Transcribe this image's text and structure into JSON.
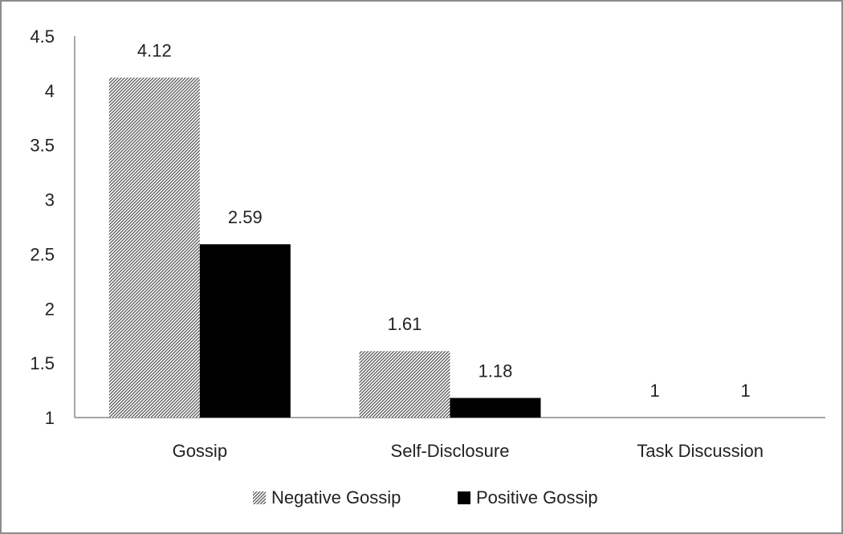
{
  "chart_data": {
    "type": "bar",
    "categories": [
      "Gossip",
      "Self-Disclosure",
      "Task Discussion"
    ],
    "series": [
      {
        "name": "Negative Gossip",
        "values": [
          4.12,
          1.61,
          1
        ],
        "labels": [
          "4.12",
          "1.61",
          "1"
        ],
        "pattern": "hatch",
        "color": "#555555"
      },
      {
        "name": "Positive Gossip",
        "values": [
          2.59,
          1.18,
          1
        ],
        "labels": [
          "2.59",
          "1.18",
          "1"
        ],
        "pattern": "solid",
        "color": "#000000"
      }
    ],
    "yticks": [
      "1",
      "1.5",
      "2",
      "2.5",
      "3",
      "3.5",
      "4",
      "4.5"
    ],
    "ylim": [
      1,
      4.5
    ],
    "grid": false,
    "legend_position": "bottom",
    "title": "",
    "xlabel": "",
    "ylabel": ""
  }
}
